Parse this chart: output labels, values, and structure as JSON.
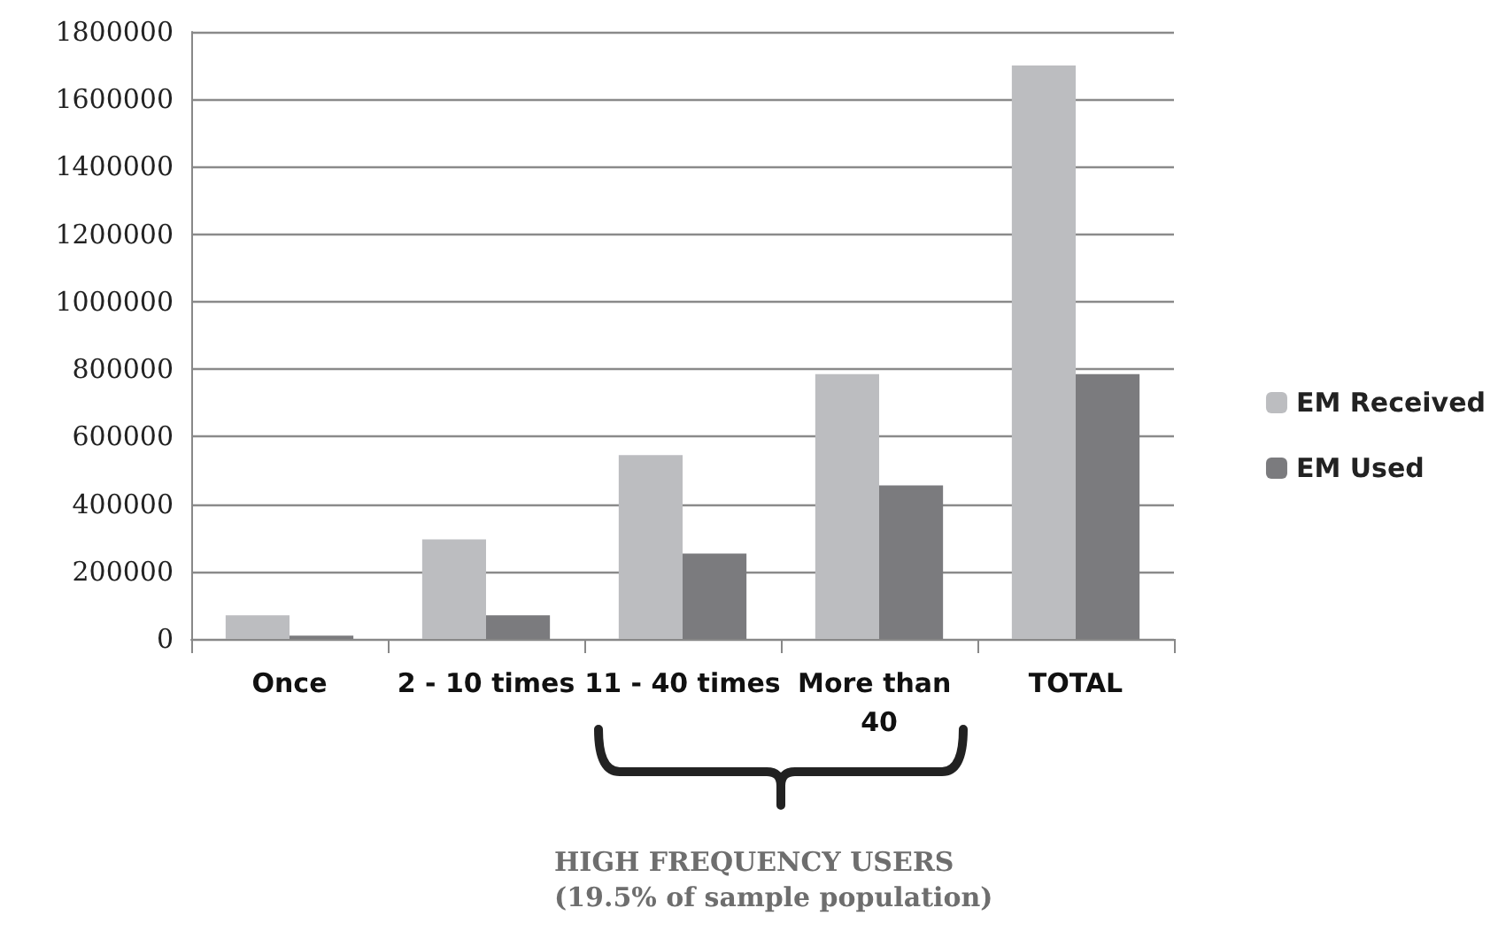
{
  "chart_data": {
    "type": "bar",
    "categories": [
      "Once",
      "2 - 10 times",
      "11 - 40 times",
      "More than 40",
      "TOTAL"
    ],
    "series": [
      {
        "name": "EM Received",
        "color": "#bcbdc0",
        "values": [
          70000,
          295000,
          545000,
          785000,
          1700000
        ]
      },
      {
        "name": "EM Used",
        "color": "#7b7b7e",
        "values": [
          10000,
          70000,
          253000,
          455000,
          785000
        ]
      }
    ],
    "ylim": [
      0,
      1800000
    ],
    "yticks": [
      0,
      200000,
      400000,
      600000,
      800000,
      1000000,
      1200000,
      1400000,
      1600000,
      1800000
    ],
    "grid": "y",
    "legend": "right",
    "annotations": [
      "HIGH FREQUENCY USERS\n(19.5% of sample population)"
    ]
  }
}
